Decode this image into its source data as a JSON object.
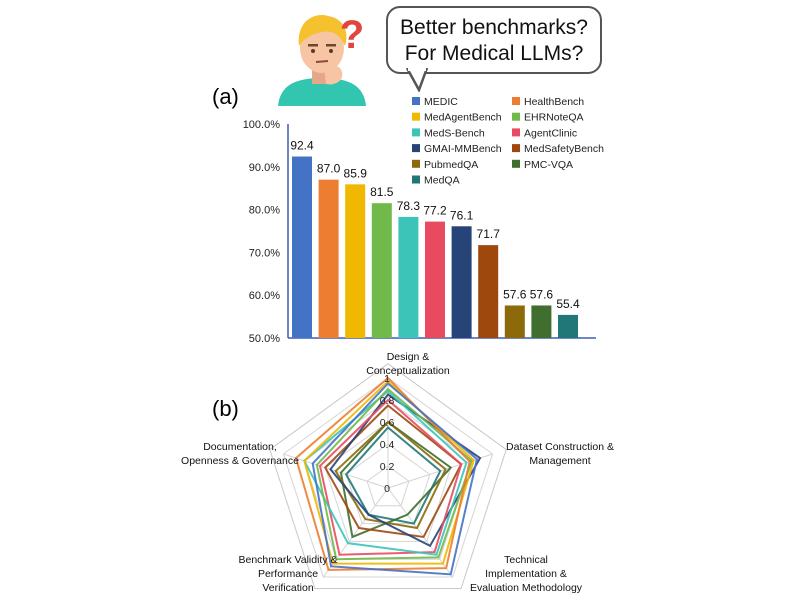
{
  "speech": {
    "line1": "Better benchmarks?",
    "line2": "For Medical LLMs?",
    "question_mark": "?"
  },
  "panel_a_label": "(a)",
  "panel_b_label": "(b)",
  "colors": {
    "MEDIC": "#4472C4",
    "HealthBench": "#ED7D31",
    "MedAgentBench": "#F0B800",
    "EHRNoteQA": "#70B94A",
    "MedS-Bench": "#3CC4B8",
    "AgentClinic": "#E84A5F",
    "GMAI-MMBench": "#264478",
    "MedSafetyBench": "#9E480E",
    "PubmedQA": "#8C6A0A",
    "PMC-VQA": "#3F6E2E",
    "MedQA": "#217777"
  },
  "chart_data": [
    {
      "type": "bar",
      "categories": [
        "MEDIC",
        "HealthBench",
        "MedAgentBench",
        "EHRNoteQA",
        "MedS-Bench",
        "AgentClinic",
        "GMAI-MMBench",
        "MedSafetyBench",
        "PubmedQA",
        "PMC-VQA",
        "MedQA"
      ],
      "values": [
        92.4,
        87.0,
        85.9,
        81.5,
        78.3,
        77.2,
        76.1,
        71.7,
        57.6,
        57.6,
        55.4
      ],
      "value_labels": [
        "92.4",
        "87.0",
        "85.9",
        "81.5",
        "78.3",
        "77.2",
        "76.1",
        "71.7",
        "57.6",
        "57.6",
        "55.4"
      ],
      "ylim": [
        50,
        100
      ],
      "yticks": [
        "100.0%",
        "90.0%",
        "80.0%",
        "70.0%",
        "60.0%",
        "50.0%"
      ],
      "legend": [
        "MEDIC",
        "HealthBench",
        "MedAgentBench",
        "EHRNoteQA",
        "MedS-Bench",
        "AgentClinic",
        "GMAI-MMBench",
        "MedSafetyBench",
        "PubmedQA",
        "PMC-VQA",
        "MedQA"
      ],
      "legend_position": "top-right, two columns",
      "grid": false
    },
    {
      "type": "radar",
      "axes": [
        {
          "line1": "Design &",
          "line2": "Conceptualization",
          "line3": ""
        },
        {
          "line1": "Dataset Construction &",
          "line2": "Management",
          "line3": ""
        },
        {
          "line1": "Technical",
          "line2": "Implementation &",
          "line3": "Evaluation Methodology"
        },
        {
          "line1": "Benchmark Validity &",
          "line2": "Performance",
          "line3": "Verification"
        },
        {
          "line1": "Documentation,",
          "line2": "Openness & Governance",
          "line3": ""
        }
      ],
      "rlim": [
        0,
        1
      ],
      "rticks": [
        "0",
        "0.2",
        "0.4",
        "0.6",
        "0.8",
        "1"
      ],
      "series": [
        {
          "name": "MEDIC",
          "values": [
            0.95,
            0.85,
            0.97,
            0.88,
            0.72
          ]
        },
        {
          "name": "HealthBench",
          "values": [
            1.0,
            0.78,
            0.9,
            0.92,
            0.88
          ]
        },
        {
          "name": "MedAgentBench",
          "values": [
            0.97,
            0.82,
            0.85,
            0.85,
            0.8
          ]
        },
        {
          "name": "EHRNoteQA",
          "values": [
            0.9,
            0.8,
            0.78,
            0.8,
            0.68
          ]
        },
        {
          "name": "MedS-Bench",
          "values": [
            0.88,
            0.75,
            0.75,
            0.62,
            0.8
          ]
        },
        {
          "name": "AgentClinic",
          "values": [
            0.8,
            0.7,
            0.72,
            0.75,
            0.65
          ]
        },
        {
          "name": "GMAI-MMBench",
          "values": [
            0.85,
            0.88,
            0.65,
            0.3,
            0.55
          ]
        },
        {
          "name": "MedSafetyBench",
          "values": [
            0.75,
            0.7,
            0.55,
            0.45,
            0.6
          ]
        },
        {
          "name": "PubmedQA",
          "values": [
            0.6,
            0.55,
            0.45,
            0.35,
            0.5
          ]
        },
        {
          "name": "PMC-VQA",
          "values": [
            0.6,
            0.6,
            0.3,
            0.55,
            0.45
          ]
        },
        {
          "name": "MedQA",
          "values": [
            0.55,
            0.5,
            0.4,
            0.3,
            0.4
          ]
        }
      ]
    }
  ]
}
